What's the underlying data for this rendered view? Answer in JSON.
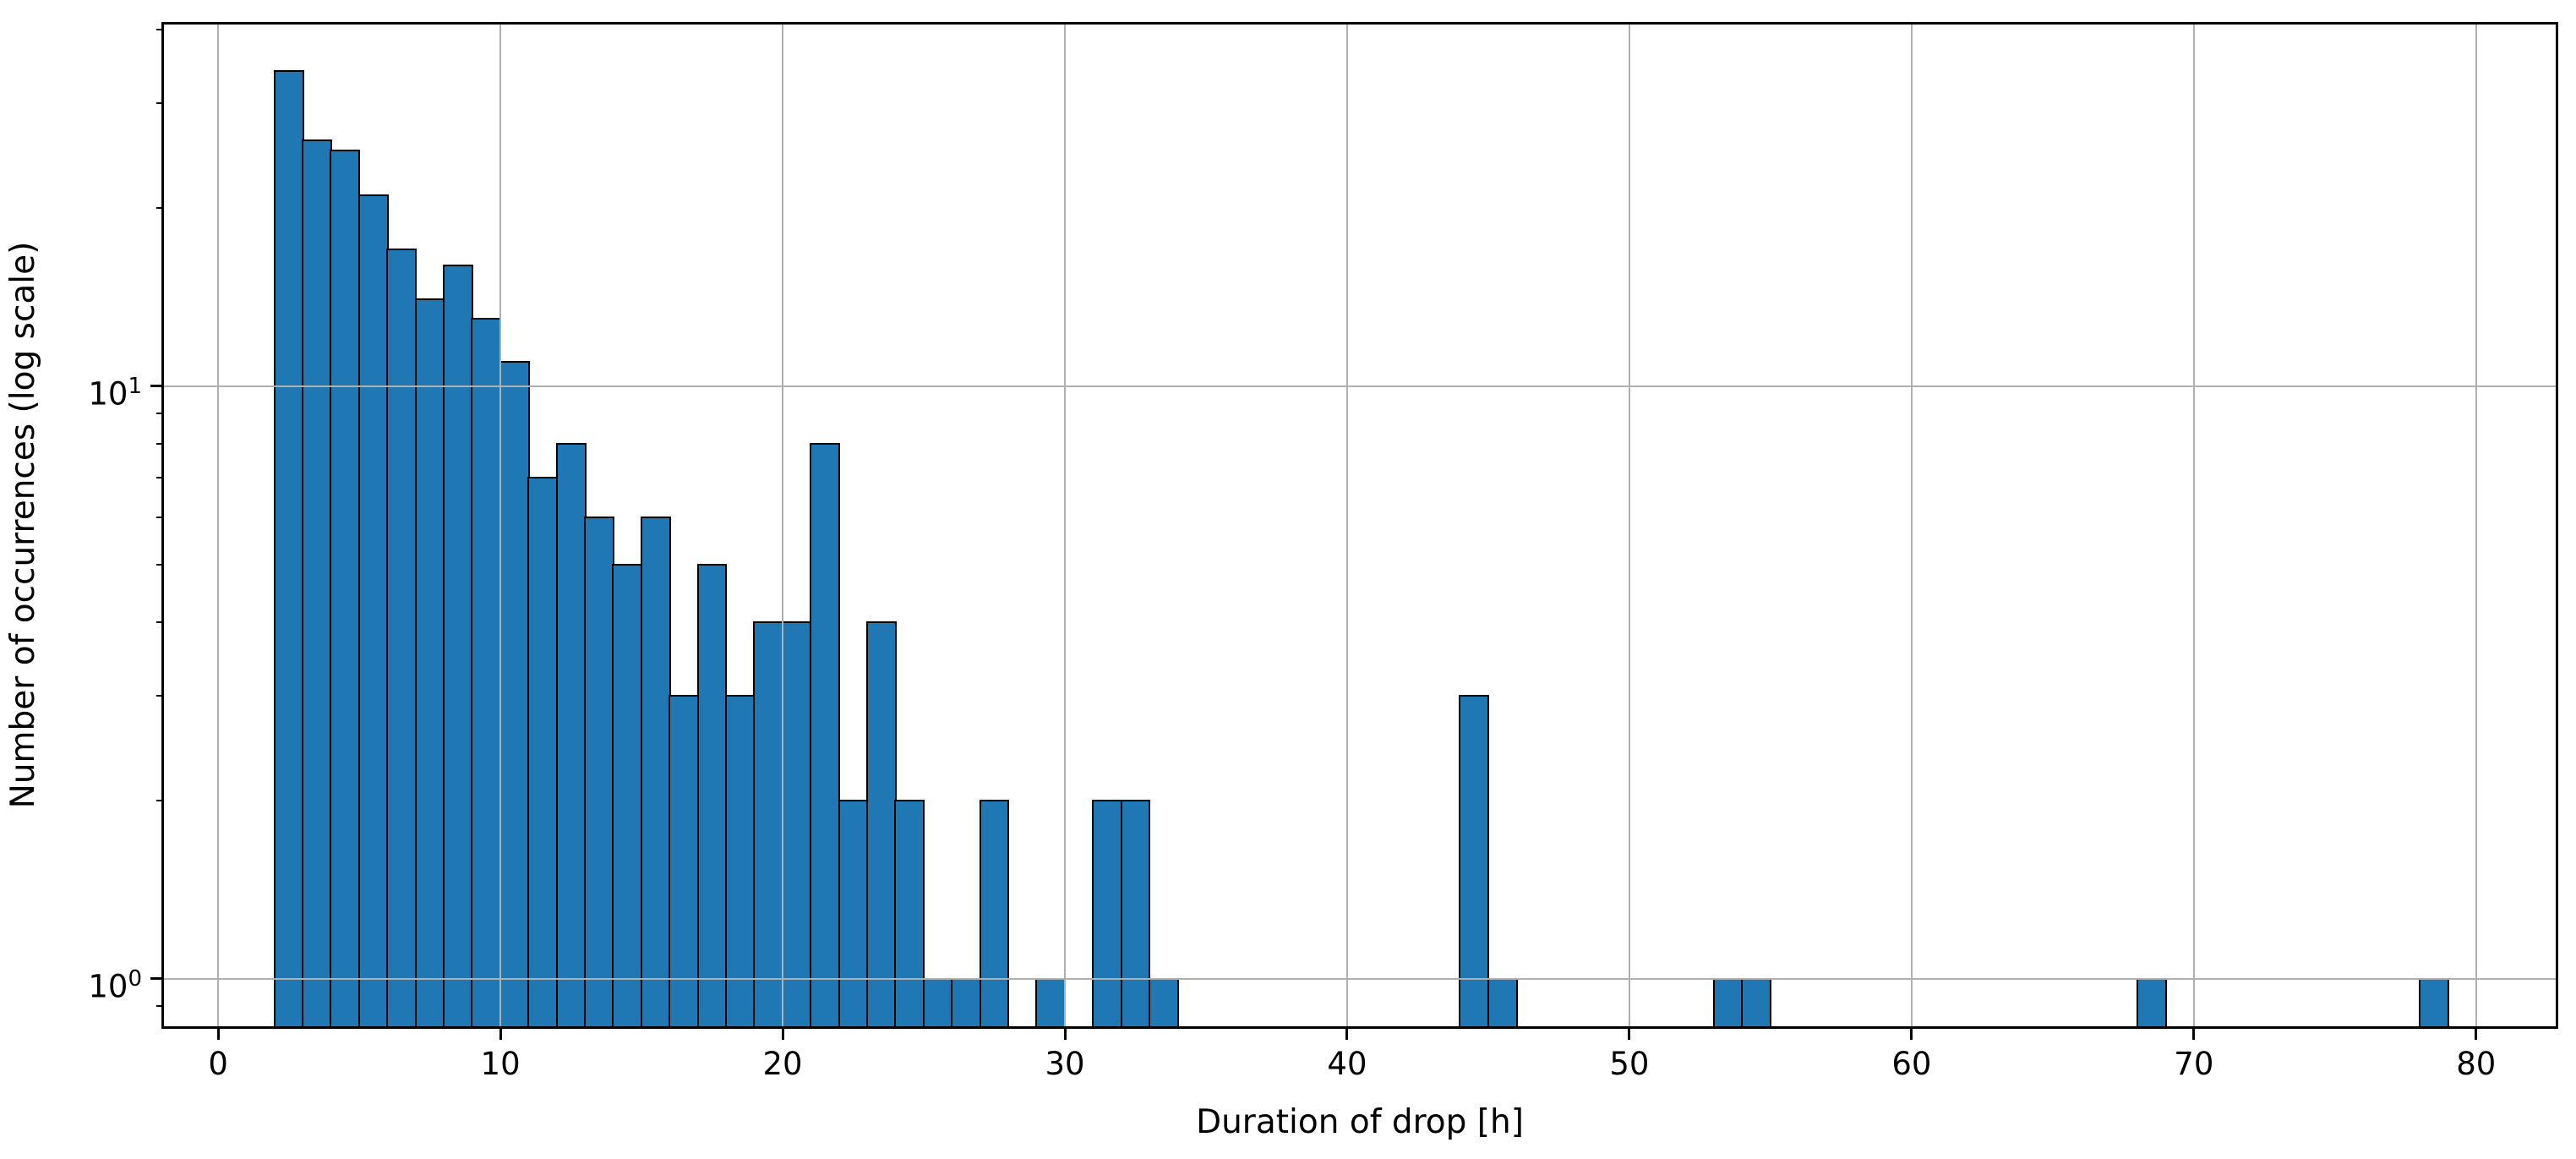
{
  "chart_data": {
    "type": "bar",
    "subtype": "histogram",
    "title": "",
    "xlabel": "Duration of drop [h]",
    "ylabel": "Number of occurrences (log scale)",
    "x_scale": "linear",
    "y_scale": "log",
    "grid": true,
    "legend": null,
    "bin_width": 1,
    "bin_starts": [
      2,
      3,
      4,
      5,
      6,
      7,
      8,
      9,
      10,
      11,
      12,
      13,
      14,
      15,
      16,
      17,
      18,
      19,
      20,
      21,
      22,
      23,
      24,
      25,
      26,
      27,
      28,
      29,
      30,
      31,
      32,
      33,
      34,
      35,
      36,
      37,
      38,
      39,
      40,
      41,
      42,
      43,
      44,
      45,
      46,
      47,
      48,
      49,
      50,
      51,
      52,
      53,
      54,
      55,
      56,
      57,
      58,
      59,
      60,
      61,
      62,
      63,
      64,
      65,
      66,
      67,
      68,
      69,
      70,
      71,
      72,
      73,
      74,
      75,
      76,
      77,
      78
    ],
    "counts": [
      34,
      26,
      25,
      21,
      17,
      14,
      16,
      13,
      11,
      7,
      8,
      6,
      5,
      6,
      3,
      5,
      3,
      4,
      4,
      8,
      2,
      4,
      2,
      1,
      1,
      2,
      0,
      1,
      0,
      2,
      2,
      1,
      0,
      0,
      0,
      0,
      0,
      0,
      0,
      0,
      0,
      0,
      3,
      1,
      0,
      0,
      0,
      0,
      0,
      0,
      0,
      1,
      1,
      0,
      0,
      0,
      0,
      0,
      0,
      0,
      0,
      0,
      0,
      0,
      0,
      0,
      1,
      0,
      0,
      0,
      0,
      0,
      0,
      0,
      0,
      0,
      1
    ],
    "xlim": [
      -1.95,
      82.85
    ],
    "ylim": [
      0.829,
      40.9
    ],
    "x_ticks": [
      {
        "value": 0,
        "label": "0"
      },
      {
        "value": 10,
        "label": "10"
      },
      {
        "value": 20,
        "label": "20"
      },
      {
        "value": 30,
        "label": "30"
      },
      {
        "value": 40,
        "label": "40"
      },
      {
        "value": 50,
        "label": "50"
      },
      {
        "value": 60,
        "label": "60"
      },
      {
        "value": 70,
        "label": "70"
      },
      {
        "value": 80,
        "label": "80"
      }
    ],
    "y_major_ticks": [
      {
        "value": 1,
        "base": "10",
        "exp": "0"
      },
      {
        "value": 10,
        "base": "10",
        "exp": "1"
      }
    ],
    "y_minor_ticks": [
      0.9,
      2,
      3,
      4,
      5,
      6,
      7,
      8,
      9,
      20,
      30,
      40
    ],
    "colors": {
      "bar_fill": "#1f77b4",
      "bar_edge": "#000000",
      "grid": "#b0b0b0",
      "axis": "#000000",
      "background": "#ffffff"
    }
  }
}
